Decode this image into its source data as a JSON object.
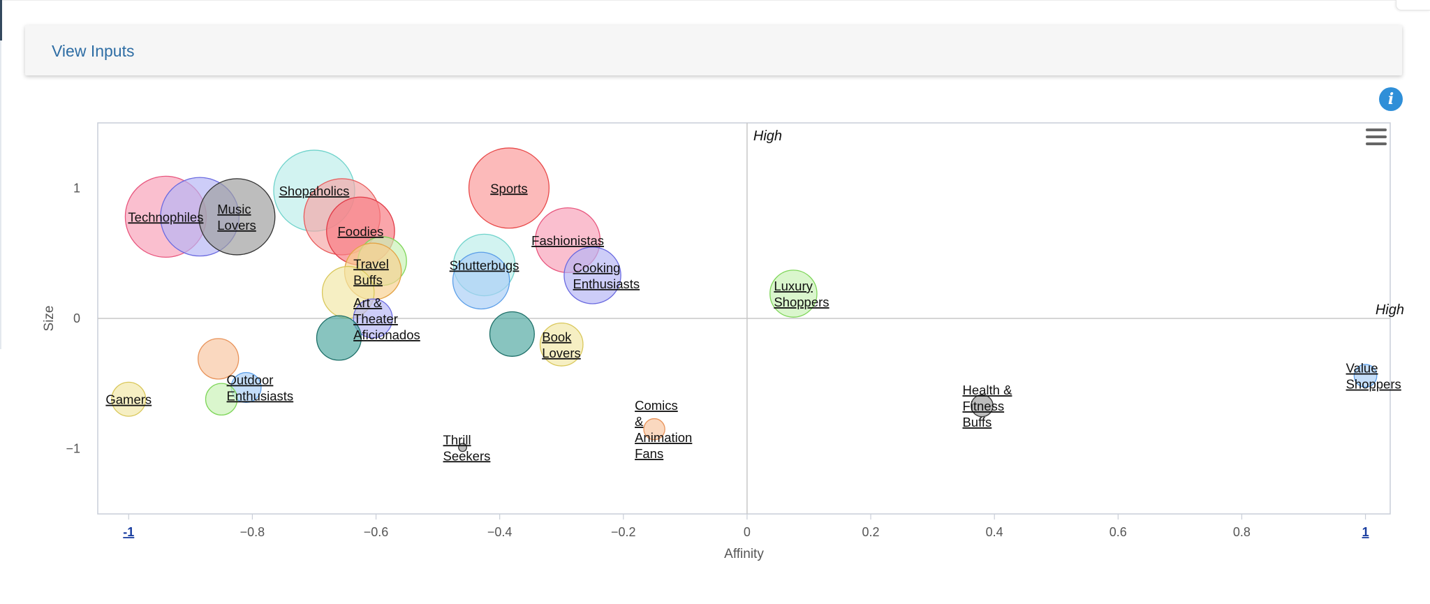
{
  "inputs_panel": {
    "link_label": "View Inputs"
  },
  "info_icon": {
    "glyph": "i",
    "name": "info-icon"
  },
  "chart_menu": {
    "name": "hamburger-menu-icon"
  },
  "chart_data": {
    "type": "scatter",
    "variant": "bubble",
    "title": "",
    "xlabel": "Affinity",
    "ylabel": "Size",
    "xlim": [
      -1.05,
      1.04
    ],
    "ylim": [
      -1.5,
      1.5
    ],
    "x_ticks": [
      "-1",
      "−0.8",
      "−0.6",
      "−0.4",
      "−0.2",
      "0",
      "0.2",
      "0.4",
      "0.6",
      "0.8",
      "1"
    ],
    "x_tick_values": [
      -1,
      -0.8,
      -0.6,
      -0.4,
      -0.2,
      0,
      0.2,
      0.4,
      0.6,
      0.8,
      1
    ],
    "x_tick_links": [
      "-1",
      "1"
    ],
    "y_ticks": [
      "1",
      "0",
      "−1"
    ],
    "y_tick_values": [
      1,
      0,
      -1
    ],
    "grid": false,
    "crosshair_lines": {
      "x": 0,
      "y": 0
    },
    "quadrant_labels": {
      "top": "High",
      "right": "High"
    },
    "points": [
      {
        "label": [
          "Technophiles"
        ],
        "x": -0.94,
        "y": 0.78,
        "size": 1.0,
        "color": "#f7a1b8",
        "stroke": "#e8567e"
      },
      {
        "label": [],
        "x": -0.885,
        "y": 0.78,
        "size": 0.97,
        "color": "#b6b6f5",
        "stroke": "#6a6ae0"
      },
      {
        "label": [
          "Music",
          "Lovers"
        ],
        "x": -0.825,
        "y": 0.78,
        "size": 0.94,
        "color": "#9d9d9d",
        "stroke": "#333333"
      },
      {
        "label": [
          "Shopaholics"
        ],
        "x": -0.7,
        "y": 0.98,
        "size": 1.0,
        "color": "#bdeeea",
        "stroke": "#6fd3cb"
      },
      {
        "label": [],
        "x": -0.655,
        "y": 0.78,
        "size": 0.94,
        "color": "#f5a6a6",
        "stroke": "#e85a5a"
      },
      {
        "label": [
          "Foodies"
        ],
        "x": -0.625,
        "y": 0.67,
        "size": 0.84,
        "color": "#f87a82",
        "stroke": "#e03c48"
      },
      {
        "label": [],
        "x": -0.59,
        "y": 0.44,
        "size": 0.6,
        "color": "#c9f2b6",
        "stroke": "#7fd65a"
      },
      {
        "label": [
          "Travel",
          "Buffs"
        ],
        "x": -0.605,
        "y": 0.36,
        "size": 0.7,
        "color": "#f7d08f",
        "stroke": "#e3a345"
      },
      {
        "label": [],
        "x": -0.645,
        "y": 0.2,
        "size": 0.64,
        "color": "#f1e7a6",
        "stroke": "#d9c75a"
      },
      {
        "label": [
          "Art &",
          "Theater",
          "Aficionados"
        ],
        "x": -0.605,
        "y": 0.0,
        "size": 0.48,
        "color": "#b6b6f5",
        "stroke": "#6a6ae0"
      },
      {
        "label": [],
        "x": -0.66,
        "y": -0.15,
        "size": 0.55,
        "color": "#4fa8a0",
        "stroke": "#1d6f68"
      },
      {
        "label": [
          "Sports"
        ],
        "x": -0.385,
        "y": 1.0,
        "size": 0.99,
        "color": "#fb9a9a",
        "stroke": "#e84a4a"
      },
      {
        "label": [
          "Shutterbugs"
        ],
        "x": -0.425,
        "y": 0.41,
        "size": 0.76,
        "color": "#bdeeea",
        "stroke": "#6fd3cb"
      },
      {
        "label": [],
        "x": -0.43,
        "y": 0.29,
        "size": 0.7,
        "color": "#a9cff6",
        "stroke": "#5b9ee8"
      },
      {
        "label": [
          "Fashionistas"
        ],
        "x": -0.29,
        "y": 0.6,
        "size": 0.8,
        "color": "#f7a1b8",
        "stroke": "#e8567e"
      },
      {
        "label": [
          "Cooking",
          "Enthusiasts"
        ],
        "x": -0.25,
        "y": 0.33,
        "size": 0.7,
        "color": "#b6b6f5",
        "stroke": "#6a6ae0"
      },
      {
        "label": [],
        "x": -0.38,
        "y": -0.12,
        "size": 0.55,
        "color": "#4fa8a0",
        "stroke": "#1d6f68"
      },
      {
        "label": [
          "Book",
          "Lovers"
        ],
        "x": -0.3,
        "y": -0.2,
        "size": 0.53,
        "color": "#f1e7a6",
        "stroke": "#d9c75a"
      },
      {
        "label": [],
        "x": -0.855,
        "y": -0.31,
        "size": 0.5,
        "color": "#f7c6a0",
        "stroke": "#e8935a"
      },
      {
        "label": [
          "Outdoor",
          "Enthusiasts"
        ],
        "x": -0.81,
        "y": -0.53,
        "size": 0.37,
        "color": "#a9cff6",
        "stroke": "#5b9ee8"
      },
      {
        "label": [],
        "x": -0.85,
        "y": -0.62,
        "size": 0.39,
        "color": "#c9f2b6",
        "stroke": "#7fd65a"
      },
      {
        "label": [
          "Gamers"
        ],
        "x": -1.0,
        "y": -0.62,
        "size": 0.42,
        "color": "#f1e7a6",
        "stroke": "#d9c75a"
      },
      {
        "label": [
          "Thrill",
          "Seekers"
        ],
        "x": -0.46,
        "y": -0.99,
        "size": 0.1,
        "color": "#9d9d9d",
        "stroke": "#333333"
      },
      {
        "label": [
          "Comics",
          "&",
          "Animation",
          "Fans"
        ],
        "x": -0.15,
        "y": -0.85,
        "size": 0.26,
        "color": "#f7c6a0",
        "stroke": "#e8935a"
      },
      {
        "label": [
          "Luxury",
          "Shoppers"
        ],
        "x": 0.075,
        "y": 0.19,
        "size": 0.58,
        "color": "#c9f2b6",
        "stroke": "#7fd65a"
      },
      {
        "label": [
          "Health &",
          "Fitness",
          "Buffs"
        ],
        "x": 0.38,
        "y": -0.67,
        "size": 0.27,
        "color": "#9d9d9d",
        "stroke": "#333333"
      },
      {
        "label": [
          "Value",
          "Shoppers"
        ],
        "x": 1.0,
        "y": -0.44,
        "size": 0.28,
        "color": "#a9cff6",
        "stroke": "#5b9ee8"
      }
    ]
  }
}
